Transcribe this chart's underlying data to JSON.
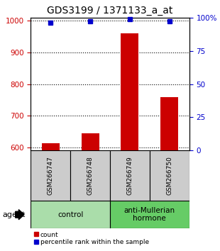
{
  "title": "GDS3199 / 1371133_a_at",
  "samples": [
    "GSM266747",
    "GSM266748",
    "GSM266749",
    "GSM266750"
  ],
  "counts": [
    613,
    645,
    960,
    758
  ],
  "percentiles": [
    96,
    97,
    99,
    97
  ],
  "ylim_left": [
    590,
    1010
  ],
  "ylim_right": [
    0,
    100
  ],
  "yticks_left": [
    600,
    700,
    800,
    900,
    1000
  ],
  "yticks_right": [
    0,
    25,
    50,
    75,
    100
  ],
  "yticklabels_right": [
    "0",
    "25",
    "50",
    "75",
    "100%"
  ],
  "bar_color": "#cc0000",
  "dot_color": "#0000cc",
  "bar_width": 0.45,
  "groups": [
    {
      "label": "control",
      "indices": [
        0,
        1
      ],
      "color": "#aaddaa"
    },
    {
      "label": "anti-Mullerian\nhormone",
      "indices": [
        2,
        3
      ],
      "color": "#66cc66"
    }
  ],
  "agent_label": "agent",
  "legend_count_label": "count",
  "legend_percentile_label": "percentile rank within the sample",
  "label_area_color": "#cccccc",
  "left_tick_color": "#cc0000",
  "right_tick_color": "#0000cc",
  "title_fontsize": 10,
  "tick_fontsize": 7.5,
  "sample_fontsize": 6.5,
  "group_fontsize": 7.5,
  "legend_fontsize": 6.5
}
